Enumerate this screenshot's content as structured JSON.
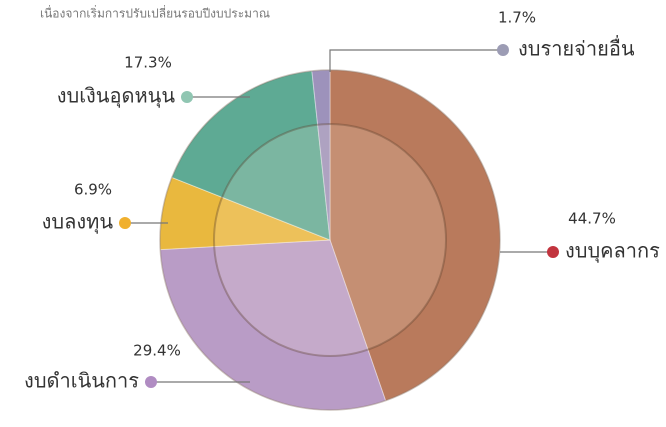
{
  "chart_data": {
    "type": "pie",
    "subtitle": "เนื่องจากเริ่มการปรับเปลี่ยนรอบปีงบประมาณ",
    "categories": [
      "งบบุคลากร",
      "งบดำเนินการ",
      "งบลงทุน",
      "งบเงินอุดหนุน",
      "งบรายจ่ายอื่น"
    ],
    "values": [
      44.7,
      29.4,
      6.9,
      17.3,
      1.7
    ],
    "value_labels": [
      "44.7%",
      "29.4%",
      "6.9%",
      "17.3%",
      "1.7%"
    ],
    "colors": [
      "#b97a5c",
      "#b99cc6",
      "#e9b83e",
      "#5eaa94",
      "#9d92bb"
    ],
    "marker_colors": [
      "#c2343e",
      "#b08cc2",
      "#f0b02e",
      "#90c6b2",
      "#9c9cb4"
    ]
  }
}
